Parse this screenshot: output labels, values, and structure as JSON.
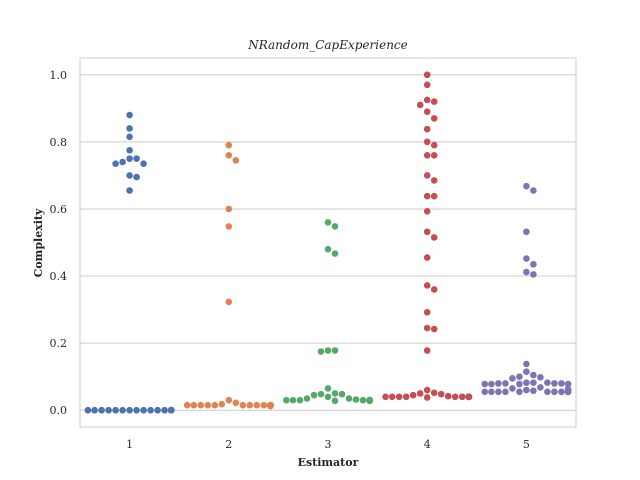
{
  "chart_data": {
    "type": "scatter",
    "subtype": "swarm",
    "title": "NRandom_CapExperience",
    "xlabel": "Estimator",
    "ylabel": "Complexity",
    "categories": [
      "1",
      "2",
      "3",
      "4",
      "5"
    ],
    "ylim": [
      -0.05,
      1.05
    ],
    "yticks": [
      "0.0",
      "0.2",
      "0.4",
      "0.6",
      "0.8",
      "1.0"
    ],
    "grid": "horizontal",
    "legend": "none",
    "colors": [
      "#4c72b0",
      "#dd8452",
      "#55a868",
      "#c44e52",
      "#8172b3"
    ],
    "series": [
      {
        "values": [
          0.88,
          0.84,
          0.815,
          0.775,
          0.75,
          0.74,
          0.735,
          0.735,
          0.75,
          0.7,
          0.695,
          0.655,
          0,
          0,
          0,
          0,
          0,
          0,
          0,
          0,
          0,
          0,
          0,
          0,
          0,
          0,
          0,
          0,
          0,
          0,
          0,
          0,
          0,
          0,
          0,
          0,
          0,
          0,
          0
        ]
      },
      {
        "values": [
          0.79,
          0.76,
          0.745,
          0.6,
          0.548,
          0.323,
          0.015,
          0.015,
          0.015,
          0.015,
          0.015,
          0.015,
          0.015,
          0.015,
          0.015,
          0.015,
          0.015,
          0.015,
          0.015,
          0.015,
          0.015,
          0.015,
          0.015,
          0.015,
          0.015,
          0.015,
          0.015,
          0.015,
          0.015,
          0.015,
          0.012,
          0.018,
          0.022,
          0.03
        ]
      },
      {
        "values": [
          0.56,
          0.548,
          0.48,
          0.467,
          0.178,
          0.175,
          0.178,
          0.065,
          0.05,
          0.048,
          0.048,
          0.045,
          0.04,
          0.035,
          0.03,
          0.03,
          0.03,
          0.03,
          0.03,
          0.03,
          0.03,
          0.03,
          0.03,
          0.03,
          0.03,
          0.03,
          0.03,
          0.03,
          0.03,
          0.03,
          0.03,
          0.028,
          0.028,
          0.03,
          0.032,
          0.035,
          0.028,
          0.028
        ]
      },
      {
        "values": [
          1.0,
          0.97,
          0.925,
          0.92,
          0.91,
          0.89,
          0.87,
          0.838,
          0.8,
          0.79,
          0.76,
          0.76,
          0.7,
          0.685,
          0.638,
          0.638,
          0.593,
          0.532,
          0.515,
          0.455,
          0.372,
          0.36,
          0.292,
          0.245,
          0.242,
          0.178,
          0.06,
          0.052,
          0.045,
          0.04,
          0.04,
          0.04,
          0.04,
          0.04,
          0.04,
          0.04,
          0.04,
          0.04,
          0.04,
          0.04,
          0.04,
          0.04,
          0.04,
          0.04,
          0.04,
          0.04,
          0.04,
          0.038,
          0.042,
          0.048,
          0.05
        ]
      },
      {
        "values": [
          0.668,
          0.655,
          0.532,
          0.452,
          0.435,
          0.412,
          0.405,
          0.138,
          0.115,
          0.105,
          0.1,
          0.098,
          0.095,
          0.082,
          0.082,
          0.08,
          0.08,
          0.078,
          0.078,
          0.078,
          0.078,
          0.08,
          0.082,
          0.08,
          0.078,
          0.068,
          0.065,
          0.062,
          0.055,
          0.055,
          0.055,
          0.055,
          0.055,
          0.055,
          0.055,
          0.055,
          0.055,
          0.055,
          0.055,
          0.055,
          0.055,
          0.055,
          0.055,
          0.055,
          0.055,
          0.058,
          0.06,
          0.062
        ]
      }
    ]
  }
}
